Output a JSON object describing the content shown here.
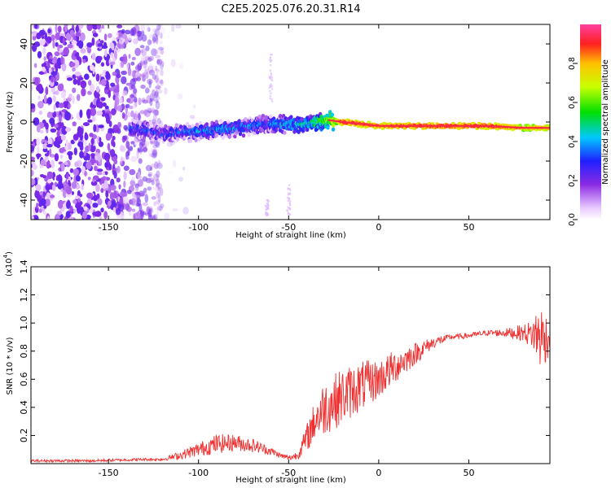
{
  "title": "C2E5.2025.076.20.31.R14",
  "colors": {
    "snr_line": "#f03030",
    "axis": "#000000",
    "background": "#ffffff"
  },
  "chart_data": [
    {
      "type": "heatmap",
      "name": "spectrogram",
      "xlabel": "Height of straight line (km)",
      "ylabel": "Frequency (Hz)",
      "xlim": [
        -193,
        95
      ],
      "ylim": [
        -50,
        50
      ],
      "x_ticks": [
        -150,
        -100,
        -50,
        0,
        50
      ],
      "y_ticks": [
        -40,
        -20,
        0,
        20,
        40
      ],
      "colorbar": {
        "label": "Normalized spectral amplitude",
        "range": [
          0.0,
          1.0
        ],
        "ticks": [
          "0.0",
          "0.2",
          "0.4",
          "0.6",
          "0.8"
        ],
        "tick_values": [
          0.0,
          0.2,
          0.4,
          0.6,
          0.8
        ],
        "colormap": "rainbow (white-violet-blue-cyan-green-yellow-red)"
      },
      "centerline": {
        "x": [
          -138,
          -120,
          -100,
          -80,
          -60,
          -40,
          -28,
          -20,
          0,
          20,
          60,
          80,
          95
        ],
        "frequency": [
          -3,
          -6,
          -5,
          -3,
          -1,
          -1,
          1,
          0,
          -2,
          -2,
          -2,
          -3,
          -3
        ],
        "amplitude": [
          0.3,
          0.3,
          0.35,
          0.35,
          0.35,
          0.45,
          0.6,
          0.95,
          0.9,
          0.95,
          0.95,
          0.85,
          0.85
        ]
      },
      "noise_region_x": [
        -193,
        -120
      ]
    },
    {
      "type": "line",
      "name": "snr",
      "xlabel": "Height of straight line (km)",
      "ylabel": "SNR (10 * v/v)",
      "y_multiplier": "(x10",
      "y_multiplier_exp": "4",
      "y_multiplier_close": ")",
      "xlim": [
        -193,
        95
      ],
      "ylim": [
        0,
        1.4
      ],
      "x_ticks": [
        -150,
        -100,
        -50,
        0,
        50
      ],
      "y_ticks": [
        "0.2",
        "0.4",
        "0.6",
        "0.8",
        "1.0",
        "1.2",
        "1.4"
      ],
      "y_tick_values": [
        0.2,
        0.4,
        0.6,
        0.8,
        1.0,
        1.2,
        1.4
      ],
      "series": [
        {
          "x": [
            -193,
            -160,
            -130,
            -120,
            -110,
            -100,
            -90,
            -80,
            -70,
            -60,
            -55,
            -50,
            -45,
            -40,
            -35,
            -30,
            -20,
            -10,
            0,
            10,
            20,
            30,
            40,
            50,
            60,
            70,
            80,
            85,
            88,
            90,
            92,
            94,
            95
          ],
          "mean": [
            0.02,
            0.02,
            0.03,
            0.03,
            0.06,
            0.1,
            0.14,
            0.15,
            0.13,
            0.09,
            0.06,
            0.04,
            0.06,
            0.18,
            0.32,
            0.4,
            0.48,
            0.55,
            0.6,
            0.7,
            0.78,
            0.86,
            0.9,
            0.91,
            0.93,
            0.93,
            0.93,
            0.92,
            0.92,
            0.9,
            0.9,
            0.9,
            0.9
          ],
          "noise": [
            0.01,
            0.01,
            0.01,
            0.01,
            0.03,
            0.05,
            0.07,
            0.06,
            0.05,
            0.03,
            0.02,
            0.02,
            0.03,
            0.1,
            0.15,
            0.2,
            0.2,
            0.18,
            0.14,
            0.12,
            0.08,
            0.04,
            0.02,
            0.02,
            0.02,
            0.03,
            0.06,
            0.1,
            0.2,
            0.25,
            0.2,
            0.15,
            0.1
          ]
        }
      ]
    }
  ]
}
